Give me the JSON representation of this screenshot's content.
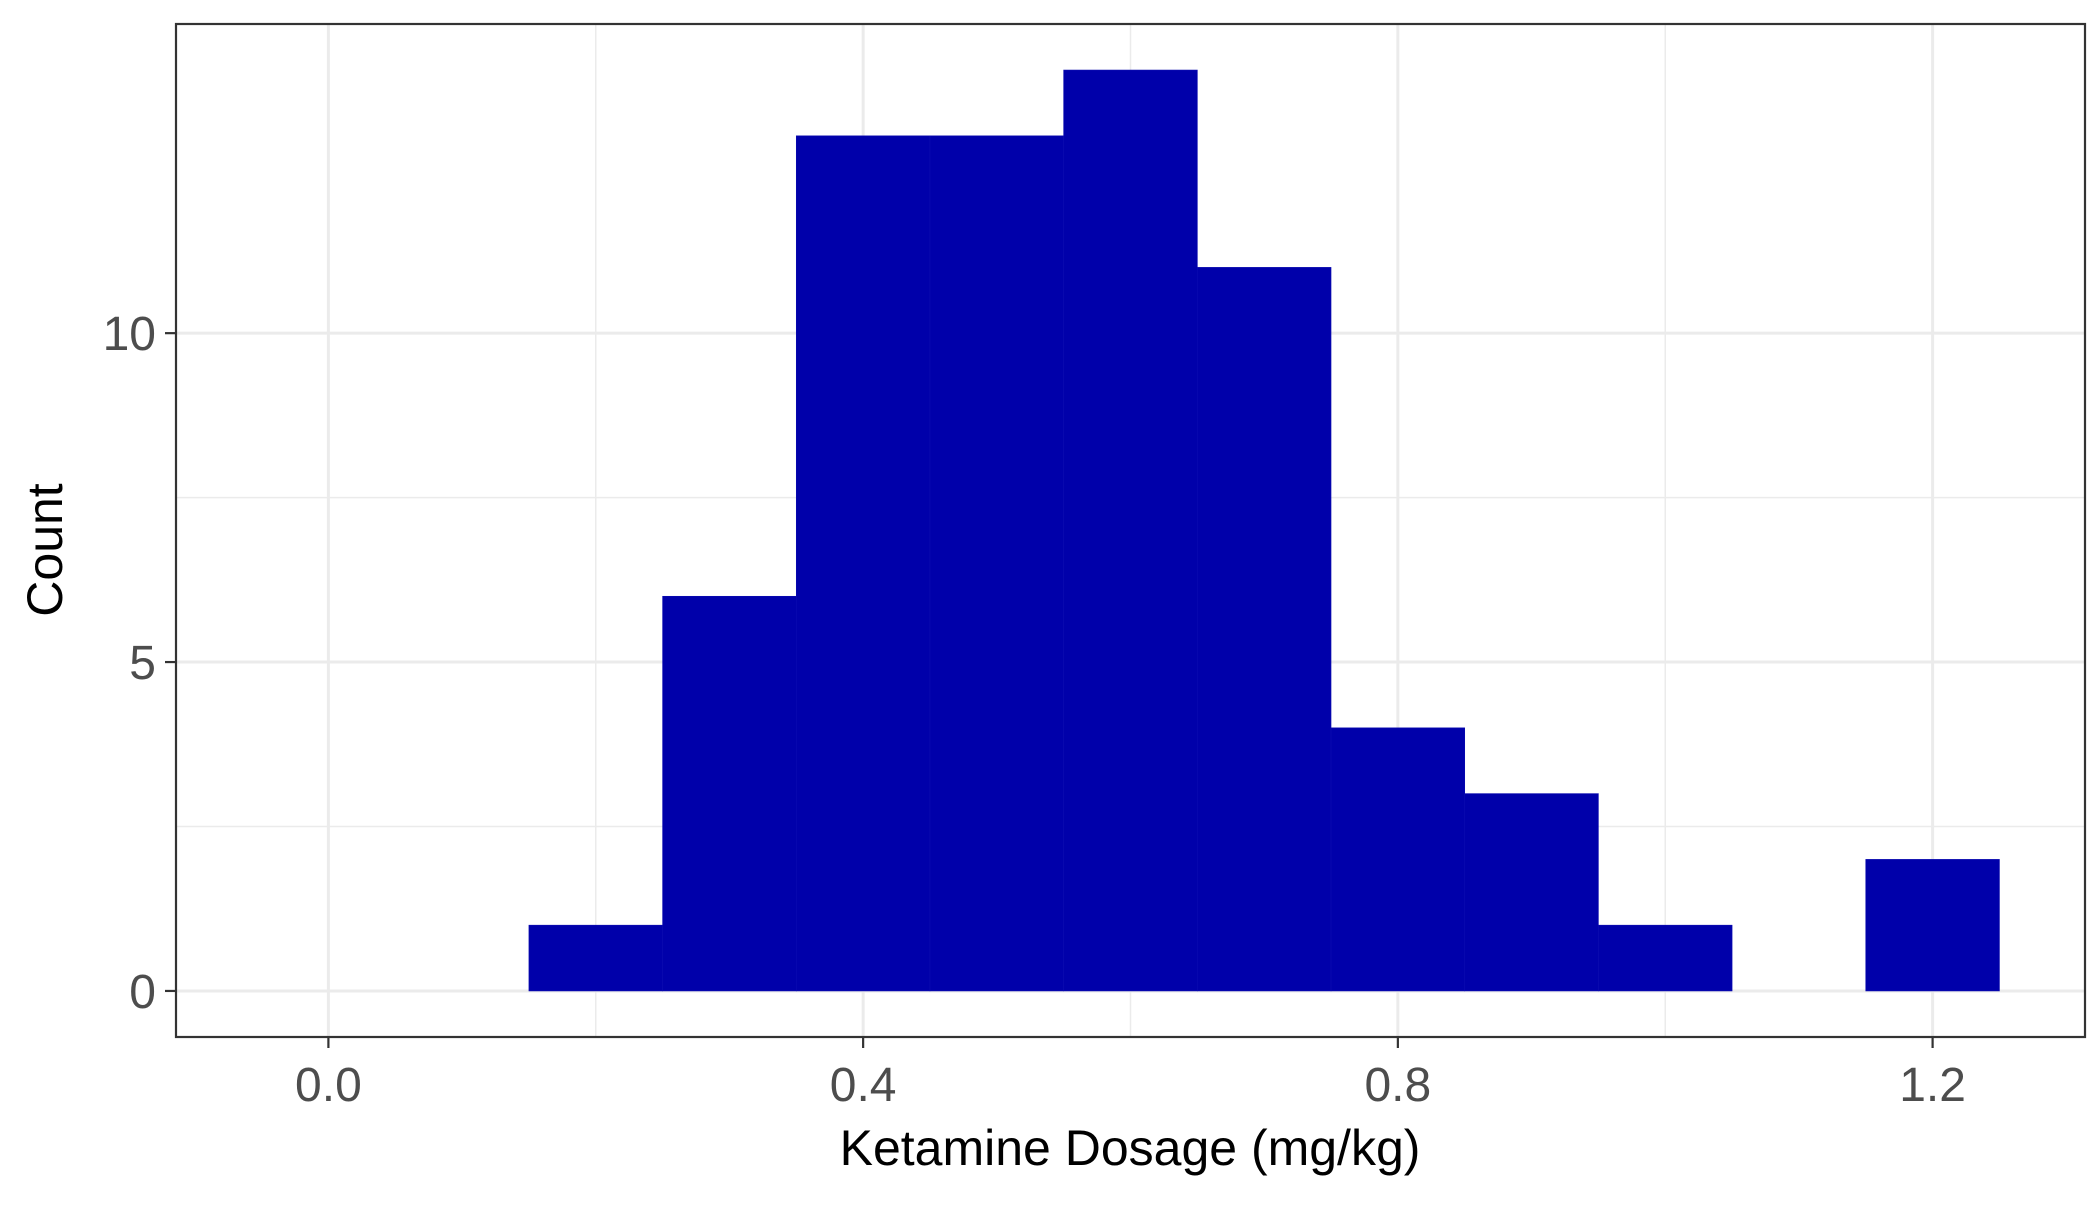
{
  "chart_data": {
    "type": "bar",
    "xlabel": "Ketamine Dosage (mg/kg)",
    "ylabel": "Count",
    "xlim": [
      -0.114,
      1.314
    ],
    "ylim": [
      -0.7,
      14.7
    ],
    "x_ticks": [
      0.0,
      0.4,
      0.8,
      1.2
    ],
    "x_tick_labels": [
      "0.0",
      "0.4",
      "0.8",
      "1.2"
    ],
    "y_ticks": [
      0,
      5,
      10
    ],
    "y_tick_labels": [
      "0",
      "5",
      "10"
    ],
    "bin_width": 0.1,
    "bins": [
      {
        "x0": 0.15,
        "x1": 0.25,
        "count": 1
      },
      {
        "x0": 0.25,
        "x1": 0.35,
        "count": 6
      },
      {
        "x0": 0.35,
        "x1": 0.45,
        "count": 13
      },
      {
        "x0": 0.45,
        "x1": 0.55,
        "count": 13
      },
      {
        "x0": 0.55,
        "x1": 0.65,
        "count": 14
      },
      {
        "x0": 0.65,
        "x1": 0.75,
        "count": 11
      },
      {
        "x0": 0.75,
        "x1": 0.85,
        "count": 4
      },
      {
        "x0": 0.85,
        "x1": 0.95,
        "count": 3
      },
      {
        "x0": 0.95,
        "x1": 1.05,
        "count": 1
      },
      {
        "x0": 1.15,
        "x1": 1.25,
        "count": 2
      }
    ],
    "bar_color": "#0000AA",
    "grid": true,
    "legend": "none"
  }
}
